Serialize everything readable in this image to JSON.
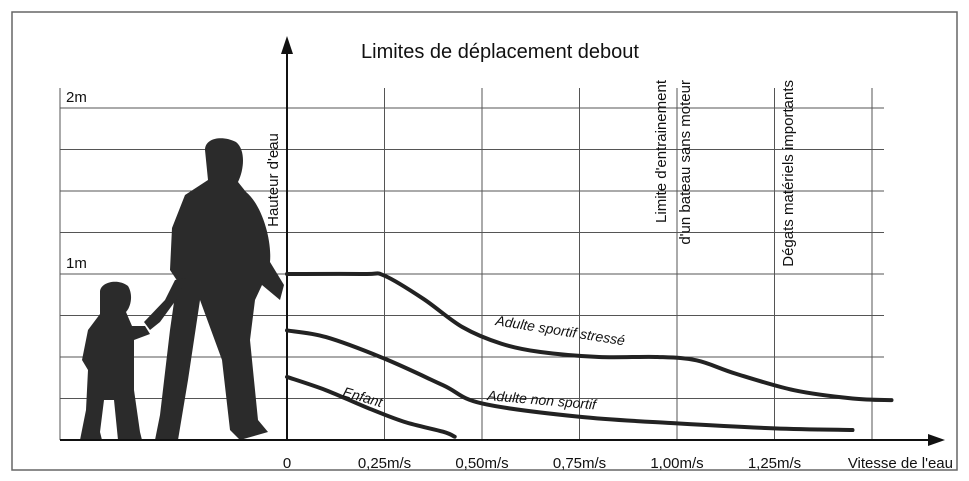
{
  "chart_data": {
    "type": "line",
    "title": "Limites de déplacement debout",
    "ylabel": "Hauteur d'eau",
    "xlabel": "Vitesse de l'eau",
    "xlim": [
      0,
      1.5
    ],
    "ylim": [
      0,
      2
    ],
    "xticks": [
      0,
      {
        "value": 0.25,
        "label": "0,25m/s"
      },
      {
        "value": 0.5,
        "label": "0,50m/s"
      },
      {
        "value": 0.75,
        "label": "0,75m/s"
      },
      {
        "value": 1.0,
        "label": "1,00m/s"
      },
      {
        "value": 1.25,
        "label": "1,25m/s"
      }
    ],
    "yticks": [
      {
        "value": 1,
        "label": "1m"
      },
      {
        "value": 2,
        "label": "2m"
      }
    ],
    "xgrid": [
      0.25,
      0.5,
      0.75,
      1.0,
      1.25,
      1.5
    ],
    "ygrid": [
      0.25,
      0.5,
      0.75,
      1,
      1.25,
      1.5,
      1.75,
      2
    ],
    "grid": true,
    "annotations": [
      [
        "Limite d'entrainement",
        "d'un bateau sans moteur"
      ],
      [
        "Dégats matériels importants"
      ]
    ],
    "series": [
      {
        "name": "Adulte sportif stressé",
        "color": "#222222",
        "x": [
          0,
          0.2,
          0.25,
          0.35,
          0.45,
          0.55,
          0.65,
          0.8,
          0.95,
          1.05,
          1.15,
          1.3,
          1.45,
          1.55
        ],
        "values": [
          1,
          1,
          0.99,
          0.85,
          0.68,
          0.58,
          0.53,
          0.5,
          0.5,
          0.48,
          0.4,
          0.3,
          0.25,
          0.24
        ]
      },
      {
        "name": "Adulte non sportif",
        "color": "#222222",
        "x": [
          0,
          0.1,
          0.25,
          0.4,
          0.5,
          0.75,
          1.0,
          1.25,
          1.45
        ],
        "values": [
          0.66,
          0.62,
          0.49,
          0.33,
          0.22,
          0.14,
          0.1,
          0.07,
          0.06
        ]
      },
      {
        "name": "Enfant",
        "color": "#222222",
        "x": [
          0,
          0.1,
          0.2,
          0.3,
          0.4,
          0.43
        ],
        "values": [
          0.38,
          0.3,
          0.2,
          0.11,
          0.05,
          0.02
        ]
      }
    ]
  }
}
